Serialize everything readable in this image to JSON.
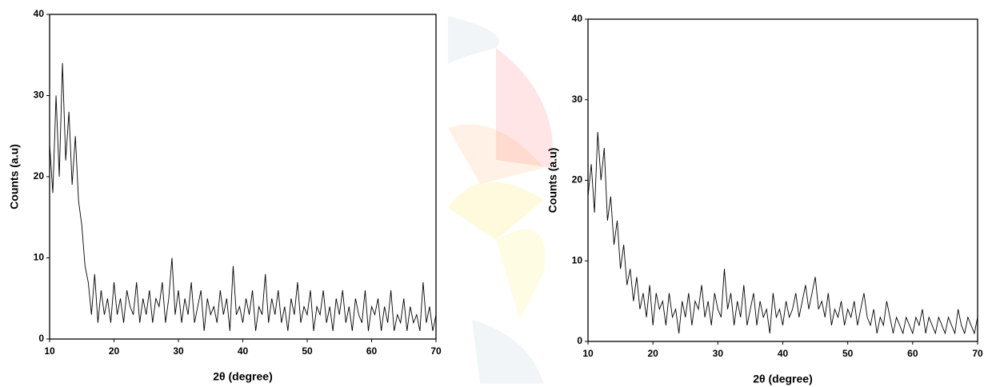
{
  "chart_data": [
    {
      "type": "line",
      "x_label": "2θ (degree)",
      "y_label": "Counts (a.u)",
      "color": "#000000",
      "xlim": [
        10,
        70
      ],
      "ylim": [
        0,
        40
      ],
      "xticks": [
        10,
        20,
        30,
        40,
        50,
        60,
        70
      ],
      "yticks": [
        0,
        10,
        20,
        30,
        40
      ],
      "x": [
        10,
        10.5,
        11,
        11.5,
        12,
        12.5,
        13,
        13.5,
        14,
        14.5,
        15,
        15.5,
        16,
        16.5,
        17,
        17.5,
        18,
        18.5,
        19,
        19.5,
        20,
        20.5,
        21,
        21.5,
        22,
        22.5,
        23,
        23.5,
        24,
        24.5,
        25,
        25.5,
        26,
        26.5,
        27,
        27.5,
        28,
        28.5,
        29,
        29.5,
        30,
        30.5,
        31,
        31.5,
        32,
        32.5,
        33,
        33.5,
        34,
        34.5,
        35,
        35.5,
        36,
        36.5,
        37,
        37.5,
        38,
        38.5,
        39,
        39.5,
        40,
        40.5,
        41,
        41.5,
        42,
        42.5,
        43,
        43.5,
        44,
        44.5,
        45,
        45.5,
        46,
        46.5,
        47,
        47.5,
        48,
        48.5,
        49,
        49.5,
        50,
        50.5,
        51,
        51.5,
        52,
        52.5,
        53,
        53.5,
        54,
        54.5,
        55,
        55.5,
        56,
        56.5,
        57,
        57.5,
        58,
        58.5,
        59,
        59.5,
        60,
        60.5,
        61,
        61.5,
        62,
        62.5,
        63,
        63.5,
        64,
        64.5,
        65,
        65.5,
        66,
        66.5,
        67,
        67.5,
        68,
        68.5,
        69,
        69.5,
        70
      ],
      "values": [
        24,
        18,
        30,
        20,
        34,
        22,
        28,
        19,
        25,
        17,
        14,
        9,
        7,
        3,
        8,
        2,
        6,
        3,
        5,
        2,
        7,
        3,
        5,
        2,
        6,
        4,
        3,
        7,
        2,
        5,
        3,
        6,
        2,
        5,
        4,
        7,
        2,
        5,
        10,
        3,
        6,
        2,
        5,
        3,
        7,
        2,
        4,
        6,
        1,
        5,
        3,
        4,
        2,
        6,
        3,
        5,
        1,
        9,
        3,
        4,
        2,
        5,
        3,
        6,
        1,
        4,
        3,
        8,
        2,
        5,
        3,
        6,
        2,
        4,
        1,
        5,
        3,
        7,
        2,
        4,
        3,
        6,
        1,
        4,
        3,
        6,
        2,
        4,
        1,
        5,
        3,
        6,
        2,
        4,
        1,
        5,
        3,
        2,
        6,
        1,
        4,
        3,
        5,
        1,
        4,
        2,
        6,
        1,
        3,
        2,
        5,
        1,
        4,
        2,
        3,
        1,
        7,
        2,
        4,
        1,
        3
      ]
    },
    {
      "type": "line",
      "x_label": "2θ (degree)",
      "y_label": "Counts (a.u)",
      "color": "#000000",
      "xlim": [
        10,
        70
      ],
      "ylim": [
        0,
        40
      ],
      "xticks": [
        10,
        20,
        30,
        40,
        50,
        60,
        70
      ],
      "yticks": [
        0,
        10,
        20,
        30,
        40
      ],
      "x": [
        10,
        10.5,
        11,
        11.5,
        12,
        12.5,
        13,
        13.5,
        14,
        14.5,
        15,
        15.5,
        16,
        16.5,
        17,
        17.5,
        18,
        18.5,
        19,
        19.5,
        20,
        20.5,
        21,
        21.5,
        22,
        22.5,
        23,
        23.5,
        24,
        24.5,
        25,
        25.5,
        26,
        26.5,
        27,
        27.5,
        28,
        28.5,
        29,
        29.5,
        30,
        30.5,
        31,
        31.5,
        32,
        32.5,
        33,
        33.5,
        34,
        34.5,
        35,
        35.5,
        36,
        36.5,
        37,
        37.5,
        38,
        38.5,
        39,
        39.5,
        40,
        40.5,
        41,
        41.5,
        42,
        42.5,
        43,
        43.5,
        44,
        44.5,
        45,
        45.5,
        46,
        46.5,
        47,
        47.5,
        48,
        48.5,
        49,
        49.5,
        50,
        50.5,
        51,
        51.5,
        52,
        52.5,
        53,
        53.5,
        54,
        54.5,
        55,
        55.5,
        56,
        56.5,
        57,
        57.5,
        58,
        58.5,
        59,
        59.5,
        60,
        60.5,
        61,
        61.5,
        62,
        62.5,
        63,
        63.5,
        64,
        64.5,
        65,
        65.5,
        66,
        66.5,
        67,
        67.5,
        68,
        68.5,
        69,
        69.5,
        70
      ],
      "values": [
        18,
        22,
        16,
        26,
        20,
        24,
        15,
        18,
        12,
        15,
        9,
        12,
        7,
        9,
        5,
        8,
        4,
        6,
        3,
        7,
        2,
        6,
        4,
        5,
        2,
        6,
        3,
        4,
        1,
        5,
        3,
        6,
        2,
        5,
        4,
        7,
        3,
        5,
        2,
        6,
        4,
        3,
        9,
        4,
        6,
        2,
        5,
        3,
        7,
        2,
        4,
        6,
        2,
        5,
        3,
        4,
        1,
        6,
        3,
        4,
        2,
        5,
        3,
        4,
        6,
        3,
        5,
        7,
        4,
        6,
        8,
        4,
        5,
        3,
        6,
        2,
        4,
        3,
        5,
        2,
        4,
        3,
        5,
        2,
        4,
        6,
        3,
        2,
        4,
        1,
        3,
        2,
        5,
        3,
        1,
        3,
        2,
        1,
        3,
        2,
        1,
        3,
        2,
        4,
        1,
        3,
        2,
        1,
        3,
        2,
        1,
        3,
        2,
        1,
        4,
        2,
        1,
        3,
        2,
        1,
        3
      ]
    }
  ]
}
